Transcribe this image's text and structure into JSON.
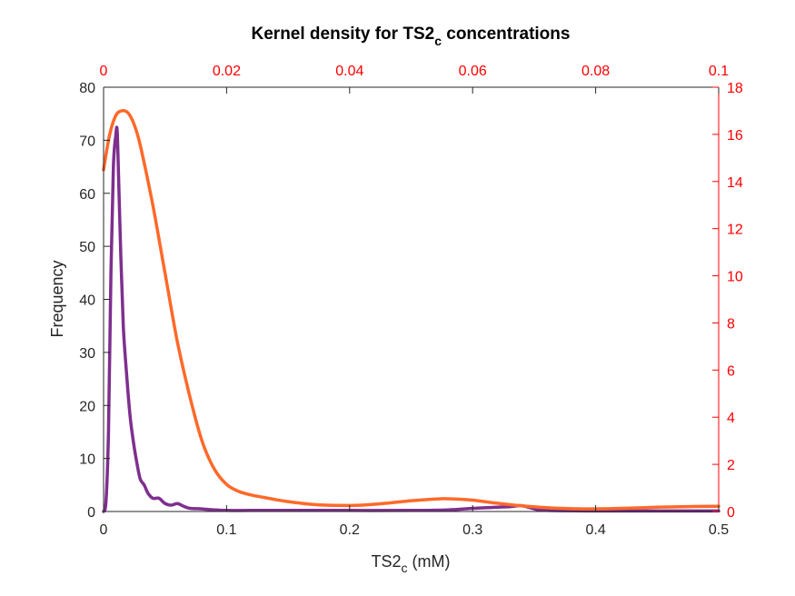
{
  "chart_data": {
    "type": "line",
    "title": "Kernel density for TS2",
    "title_subscript": "c",
    "title_suffix": " concentrations",
    "xlabel": "TS2",
    "xlabel_subscript": "c",
    "xlabel_suffix": " (mM)",
    "ylabel": "Frequency",
    "grid": false,
    "colors": {
      "left_axis": "#262626",
      "right_axis": "#ff0000",
      "series_purple": "#7e2f8e",
      "series_orange": "#ff6929"
    },
    "axes": {
      "bottom": {
        "range": [
          0,
          0.5
        ],
        "ticks": [
          0,
          0.1,
          0.2,
          0.3,
          0.4,
          0.5
        ],
        "tick_labels": [
          "0",
          "0.1",
          "0.2",
          "0.3",
          "0.4",
          "0.5"
        ]
      },
      "left": {
        "range": [
          0,
          80
        ],
        "ticks": [
          0,
          10,
          20,
          30,
          40,
          50,
          60,
          70,
          80
        ],
        "tick_labels": [
          "0",
          "10",
          "20",
          "30",
          "40",
          "50",
          "60",
          "70",
          "80"
        ]
      },
      "top": {
        "range": [
          0,
          0.1
        ],
        "ticks": [
          0,
          0.02,
          0.04,
          0.06,
          0.08,
          0.1
        ],
        "tick_labels": [
          "0",
          "0.02",
          "0.04",
          "0.06",
          "0.08",
          "0.1"
        ]
      },
      "right": {
        "range": [
          0,
          18
        ],
        "ticks": [
          0,
          2,
          4,
          6,
          8,
          10,
          12,
          14,
          16,
          18
        ],
        "tick_labels": [
          "0",
          "2",
          "4",
          "6",
          "8",
          "10",
          "12",
          "14",
          "16",
          "18"
        ]
      }
    },
    "series": [
      {
        "axes": "bottom-left",
        "color": "#7e2f8e",
        "x": [
          0,
          0.002,
          0.004,
          0.006,
          0.008,
          0.01,
          0.011,
          0.012,
          0.014,
          0.016,
          0.018,
          0.02,
          0.022,
          0.025,
          0.028,
          0.03,
          0.033,
          0.036,
          0.04,
          0.045,
          0.05,
          0.055,
          0.06,
          0.065,
          0.07,
          0.08,
          0.09,
          0.1,
          0.12,
          0.15,
          0.2,
          0.25,
          0.28,
          0.3,
          0.32,
          0.33,
          0.34,
          0.35,
          0.36,
          0.4,
          0.45,
          0.5
        ],
        "y": [
          0,
          2,
          15,
          45,
          65,
          71,
          72,
          65,
          48,
          35,
          28,
          22,
          17,
          12,
          8,
          6,
          5,
          3.5,
          2.5,
          2.5,
          1.5,
          1.2,
          1.5,
          1.0,
          0.6,
          0.5,
          0.3,
          0.2,
          0.2,
          0.2,
          0.2,
          0.2,
          0.3,
          0.6,
          0.8,
          0.9,
          1.1,
          0.5,
          0.2,
          0.1,
          0.1,
          0.1
        ]
      },
      {
        "axes": "top-right",
        "color": "#ff6929",
        "x": [
          0,
          0.001,
          0.002,
          0.003,
          0.004,
          0.005,
          0.006,
          0.008,
          0.01,
          0.012,
          0.014,
          0.016,
          0.018,
          0.02,
          0.022,
          0.024,
          0.026,
          0.028,
          0.03,
          0.034,
          0.038,
          0.042,
          0.046,
          0.05,
          0.054,
          0.056,
          0.06,
          0.064,
          0.068,
          0.072,
          0.076,
          0.08,
          0.085,
          0.09,
          0.095,
          0.1
        ],
        "y": [
          14.5,
          16.0,
          16.8,
          17.0,
          16.9,
          16.4,
          15.5,
          13.0,
          10.1,
          7.2,
          4.9,
          3.0,
          1.8,
          1.15,
          0.85,
          0.7,
          0.6,
          0.5,
          0.42,
          0.3,
          0.26,
          0.27,
          0.35,
          0.46,
          0.53,
          0.54,
          0.48,
          0.35,
          0.24,
          0.16,
          0.12,
          0.11,
          0.14,
          0.18,
          0.21,
          0.22
        ]
      }
    ]
  }
}
